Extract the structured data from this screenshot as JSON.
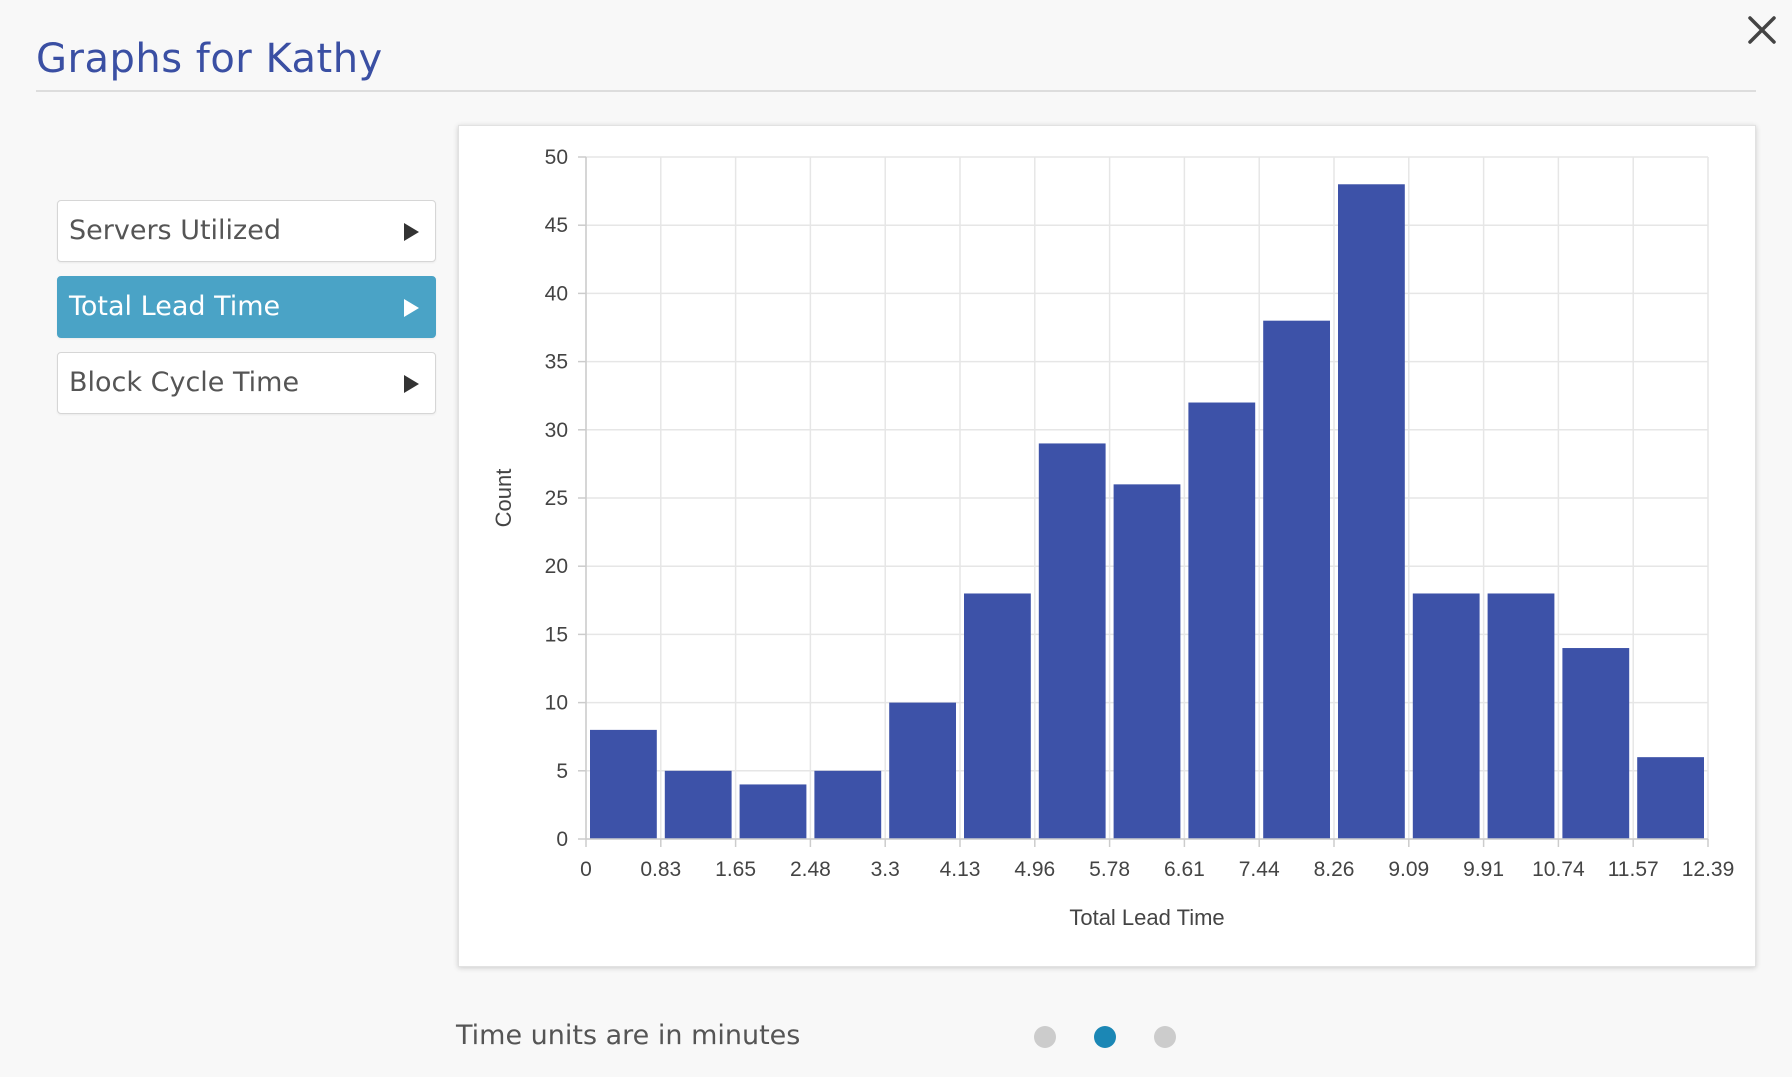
{
  "header": {
    "title": "Graphs for Kathy"
  },
  "menu": {
    "items": [
      {
        "label": "Servers Utilized",
        "active": false
      },
      {
        "label": "Total Lead Time",
        "active": true
      },
      {
        "label": "Block Cycle Time",
        "active": false
      }
    ]
  },
  "footer": {
    "note": "Time units are in minutes"
  },
  "pagination": {
    "count": 3,
    "active_index": 1
  },
  "colors": {
    "bar": "#3d52a8",
    "active_menu": "#4aa3c6",
    "active_dot": "#1b87b5",
    "title": "#3a4fa3"
  },
  "icons": {
    "close": "close-icon",
    "menu_arrow": "triangle-right-icon"
  },
  "chart_data": {
    "type": "bar",
    "xlabel": "Total Lead Time",
    "ylabel": "Count",
    "ylim": [
      0,
      50
    ],
    "yticks": [
      "0",
      "5",
      "10",
      "15",
      "20",
      "25",
      "30",
      "35",
      "40",
      "45",
      "50"
    ],
    "xticks": [
      "0",
      "0.83",
      "1.65",
      "2.48",
      "3.3",
      "4.13",
      "4.96",
      "5.78",
      "6.61",
      "7.44",
      "8.26",
      "9.09",
      "9.91",
      "10.74",
      "11.57",
      "12.39"
    ],
    "values": [
      8,
      5,
      4,
      5,
      10,
      18,
      29,
      26,
      32,
      38,
      48,
      18,
      18,
      14,
      6
    ],
    "grid": true,
    "legend": "none"
  }
}
